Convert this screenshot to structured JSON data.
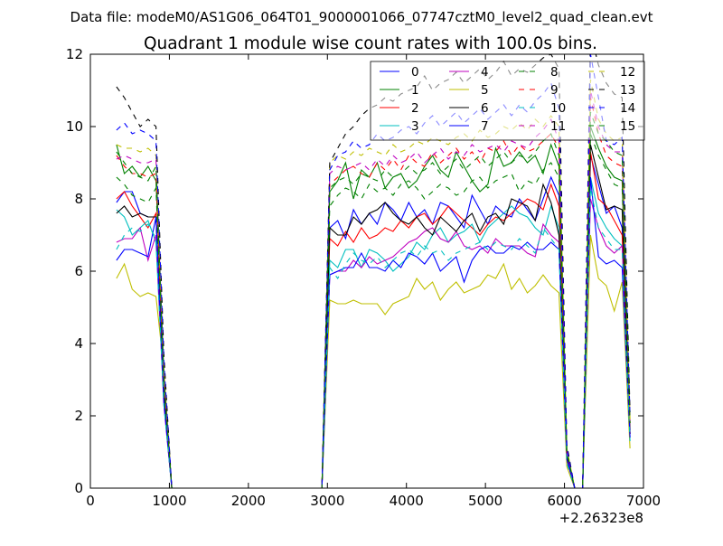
{
  "chart_data": {
    "type": "line",
    "suptitle": "Data file: modeM0/AS1G06_064T01_9000001066_07747cztM0_level2_quad_clean.evt",
    "title": "Quadrant 1 module wise count rates with 100.0s bins.",
    "xlabel": "",
    "ylabel": "",
    "xlim": [
      0,
      7000
    ],
    "ylim": [
      0,
      12
    ],
    "x_offset_label": "+2.26323e8",
    "xticks": [
      "0",
      "1000",
      "2000",
      "3000",
      "4000",
      "5000",
      "6000",
      "7000"
    ],
    "yticks": [
      "0",
      "2",
      "4",
      "6",
      "8",
      "10",
      "12"
    ],
    "legend_position": "top-right",
    "legend_columns": 4,
    "grid": false,
    "x": [
      330,
      430,
      530,
      630,
      730,
      830,
      930,
      1030,
      1130,
      1230,
      1330,
      1430,
      1530,
      1630,
      1730,
      1830,
      1930,
      2030,
      2130,
      2230,
      2330,
      2430,
      2530,
      2630,
      2730,
      2830,
      2930,
      3030,
      3130,
      3230,
      3330,
      3430,
      3530,
      3630,
      3730,
      3830,
      3930,
      4030,
      4130,
      4230,
      4330,
      4430,
      4530,
      4630,
      4730,
      4830,
      4930,
      5030,
      5130,
      5230,
      5330,
      5430,
      5530,
      5630,
      5730,
      5830,
      5930,
      6030,
      6130,
      6230,
      6330,
      6430,
      6530,
      6630,
      6730,
      6830
    ],
    "series": [
      {
        "name": "0",
        "color": "#0000ff",
        "dashed": false,
        "values": [
          7.9,
          8.2,
          8.2,
          7.6,
          7.5,
          7.5,
          2.8,
          0,
          0,
          0,
          0,
          0,
          0,
          0,
          0,
          0,
          0,
          0,
          0,
          0,
          0,
          0,
          0,
          0,
          0,
          0,
          0,
          7.2,
          7.4,
          6.9,
          7.7,
          7.3,
          7.6,
          7.3,
          7.9,
          7.7,
          7.4,
          7.9,
          7.5,
          7.7,
          7.3,
          7.9,
          7.8,
          7.5,
          7.2,
          8.1,
          7.7,
          7.3,
          7.8,
          7.6,
          7.5,
          8.0,
          7.7,
          7.4,
          8.0,
          8.6,
          8.1,
          0.9,
          0,
          0,
          9.2,
          8.4,
          7.6,
          7.8,
          7.2,
          1.6
        ]
      },
      {
        "name": "1",
        "color": "#008000",
        "dashed": false,
        "values": [
          9.5,
          8.7,
          8.9,
          8.6,
          8.9,
          8.5,
          3.2,
          0,
          0,
          0,
          0,
          0,
          0,
          0,
          0,
          0,
          0,
          0,
          0,
          0,
          0,
          0,
          0,
          0,
          0,
          0,
          0,
          8.2,
          8.5,
          9.0,
          8.0,
          8.8,
          8.6,
          9.0,
          8.3,
          8.6,
          8.7,
          8.3,
          8.5,
          8.9,
          9.2,
          8.8,
          8.6,
          9.3,
          8.9,
          8.5,
          8.2,
          8.4,
          9.4,
          8.9,
          9.0,
          9.3,
          9.0,
          9.2,
          8.7,
          9.5,
          8.9,
          1.0,
          0,
          0,
          10.0,
          9.4,
          8.9,
          8.6,
          8.5,
          1.8
        ]
      },
      {
        "name": "2",
        "color": "#ff0000",
        "dashed": false,
        "values": [
          8.0,
          8.2,
          7.8,
          7.5,
          7.2,
          7.6,
          2.7,
          0,
          0,
          0,
          0,
          0,
          0,
          0,
          0,
          0,
          0,
          0,
          0,
          0,
          0,
          0,
          0,
          0,
          0,
          0,
          0,
          6.9,
          6.7,
          7.1,
          6.8,
          7.2,
          6.9,
          7.0,
          7.2,
          7.1,
          7.4,
          7.2,
          7.5,
          7.6,
          7.3,
          7.5,
          7.8,
          7.6,
          7.4,
          7.2,
          7.0,
          7.3,
          7.5,
          7.4,
          7.6,
          7.8,
          8.0,
          7.9,
          7.7,
          8.4,
          7.8,
          0.9,
          0,
          0,
          9.3,
          8.0,
          7.8,
          7.4,
          7.0,
          1.5
        ]
      },
      {
        "name": "3",
        "color": "#00bfbf",
        "dashed": false,
        "values": [
          7.7,
          7.5,
          7.0,
          7.2,
          7.4,
          6.8,
          2.4,
          0,
          0,
          0,
          0,
          0,
          0,
          0,
          0,
          0,
          0,
          0,
          0,
          0,
          0,
          0,
          0,
          0,
          0,
          0,
          0,
          6.3,
          6.1,
          6.6,
          6.6,
          6.1,
          6.6,
          6.5,
          6.3,
          6.0,
          6.2,
          6.4,
          6.8,
          6.6,
          7.0,
          7.2,
          6.8,
          7.0,
          7.1,
          7.3,
          6.8,
          7.2,
          7.4,
          7.6,
          7.8,
          7.6,
          7.5,
          7.2,
          7.0,
          7.8,
          7.2,
          0.8,
          0,
          0,
          8.6,
          7.6,
          7.2,
          6.9,
          6.7,
          1.4
        ]
      },
      {
        "name": "4",
        "color": "#bf00bf",
        "dashed": false,
        "values": [
          6.8,
          6.9,
          6.9,
          7.2,
          6.3,
          7.0,
          2.3,
          0,
          0,
          0,
          0,
          0,
          0,
          0,
          0,
          0,
          0,
          0,
          0,
          0,
          0,
          0,
          0,
          0,
          0,
          0,
          0,
          5.9,
          6.0,
          6.0,
          6.3,
          6.1,
          6.4,
          6.2,
          6.3,
          6.4,
          6.6,
          6.8,
          6.9,
          7.1,
          7.2,
          6.9,
          6.8,
          7.1,
          6.7,
          6.6,
          6.7,
          6.5,
          6.9,
          6.7,
          6.7,
          6.7,
          6.5,
          6.4,
          7.3,
          7.0,
          6.8,
          0.8,
          0,
          0,
          8.0,
          7.2,
          6.7,
          6.5,
          6.7,
          1.5
        ]
      },
      {
        "name": "5",
        "color": "#bfbf00",
        "dashed": false,
        "values": [
          5.8,
          6.2,
          5.5,
          5.3,
          5.4,
          5.3,
          3.3,
          0,
          0,
          0,
          0,
          0,
          0,
          0,
          0,
          0,
          0,
          0,
          0,
          0,
          0,
          0,
          0,
          0,
          0,
          0,
          0,
          5.2,
          5.1,
          5.1,
          5.2,
          5.1,
          5.1,
          5.1,
          4.8,
          5.1,
          5.2,
          5.3,
          5.8,
          5.5,
          5.7,
          5.2,
          5.5,
          5.7,
          5.4,
          5.5,
          5.6,
          5.9,
          5.8,
          6.2,
          5.5,
          5.8,
          5.4,
          5.6,
          5.9,
          5.6,
          5.4,
          0.6,
          0,
          0,
          7.0,
          5.8,
          5.6,
          4.9,
          5.7,
          1.1
        ]
      },
      {
        "name": "6",
        "color": "#000000",
        "dashed": false,
        "values": [
          7.6,
          7.8,
          7.5,
          7.6,
          7.5,
          7.5,
          2.6,
          0,
          0,
          0,
          0,
          0,
          0,
          0,
          0,
          0,
          0,
          0,
          0,
          0,
          0,
          0,
          0,
          0,
          0,
          0,
          0,
          7.2,
          7.0,
          7.0,
          7.5,
          7.3,
          7.6,
          7.7,
          7.9,
          7.6,
          7.4,
          7.3,
          7.5,
          7.2,
          7.0,
          7.5,
          7.3,
          7.1,
          7.4,
          7.6,
          7.1,
          7.5,
          7.6,
          7.3,
          8.0,
          7.9,
          7.8,
          7.4,
          8.4,
          7.9,
          7.0,
          0.9,
          0,
          0,
          9.5,
          8.6,
          7.7,
          7.8,
          7.7,
          1.5
        ]
      },
      {
        "name": "7",
        "color": "#0000ff",
        "dashed": false,
        "values": [
          6.3,
          6.6,
          6.6,
          6.5,
          6.4,
          7.5,
          2.4,
          0,
          0,
          0,
          0,
          0,
          0,
          0,
          0,
          0,
          0,
          0,
          0,
          0,
          0,
          0,
          0,
          0,
          0,
          0,
          0,
          5.9,
          6.0,
          6.1,
          6.1,
          6.5,
          6.1,
          6.1,
          6.0,
          6.3,
          6.1,
          6.5,
          6.4,
          6.2,
          6.5,
          6.0,
          6.2,
          6.4,
          5.7,
          6.3,
          6.6,
          6.7,
          6.5,
          6.5,
          6.7,
          6.6,
          6.8,
          6.6,
          6.6,
          6.8,
          6.6,
          0.8,
          0,
          0,
          8.6,
          6.4,
          6.2,
          6.3,
          6.1,
          1.4
        ]
      },
      {
        "name": "8",
        "color": "#008000",
        "dashed": true,
        "values": [
          8.6,
          8.4,
          8.1,
          8.0,
          7.9,
          8.3,
          2.9,
          0,
          0,
          0,
          0,
          0,
          0,
          0,
          0,
          0,
          0,
          0,
          0,
          0,
          0,
          0,
          0,
          0,
          0,
          0,
          0,
          7.8,
          8.1,
          8.3,
          8.2,
          8.0,
          8.4,
          8.2,
          8.3,
          8.1,
          8.4,
          8.5,
          8.3,
          8.0,
          8.2,
          8.4,
          8.3,
          8.1,
          8.2,
          8.5,
          8.6,
          8.3,
          8.5,
          8.6,
          8.7,
          8.2,
          8.5,
          8.4,
          8.8,
          9.0,
          8.6,
          1.0,
          0,
          0,
          9.8,
          9.2,
          8.8,
          8.4,
          8.3,
          1.7
        ]
      },
      {
        "name": "9",
        "color": "#ff0000",
        "dashed": true,
        "values": [
          9.2,
          8.9,
          8.7,
          8.7,
          8.6,
          8.7,
          3.1,
          0,
          0,
          0,
          0,
          0,
          0,
          0,
          0,
          0,
          0,
          0,
          0,
          0,
          0,
          0,
          0,
          0,
          0,
          0,
          0,
          8.4,
          8.6,
          8.8,
          8.9,
          8.7,
          8.6,
          9.0,
          8.8,
          9.1,
          8.8,
          9.2,
          9.0,
          8.9,
          9.3,
          9.0,
          9.2,
          9.4,
          9.1,
          9.3,
          9.0,
          9.4,
          9.3,
          9.6,
          9.2,
          9.5,
          9.3,
          9.4,
          9.6,
          9.8,
          9.4,
          1.0,
          0,
          0,
          10.8,
          9.8,
          9.2,
          9.0,
          8.9,
          1.8
        ]
      },
      {
        "name": "10",
        "color": "#00bfbf",
        "dashed": true,
        "values": [
          6.6,
          7.0,
          7.2,
          7.1,
          7.3,
          6.9,
          2.3,
          0,
          0,
          0,
          0,
          0,
          0,
          0,
          0,
          0,
          0,
          0,
          0,
          0,
          0,
          0,
          0,
          0,
          0,
          0,
          0,
          6.1,
          5.8,
          6.2,
          6.5,
          6.3,
          6.2,
          6.4,
          6.1,
          6.3,
          6.5,
          6.6,
          6.4,
          6.7,
          6.5,
          6.6,
          6.3,
          6.5,
          6.6,
          6.7,
          6.8,
          6.6,
          6.8,
          6.7,
          6.6,
          6.9,
          6.7,
          6.5,
          7.2,
          6.9,
          6.6,
          0.7,
          0,
          0,
          8.3,
          7.2,
          6.9,
          6.6,
          6.6,
          1.3
        ]
      },
      {
        "name": "11",
        "color": "#bf00bf",
        "dashed": true,
        "values": [
          9.1,
          9.2,
          9.1,
          9.0,
          9.0,
          9.1,
          3.1,
          0,
          0,
          0,
          0,
          0,
          0,
          0,
          0,
          0,
          0,
          0,
          0,
          0,
          0,
          0,
          0,
          0,
          0,
          0,
          0,
          8.7,
          8.9,
          8.8,
          8.9,
          9.0,
          8.8,
          9.1,
          8.9,
          9.2,
          9.0,
          9.1,
          9.3,
          9.0,
          9.2,
          9.4,
          9.1,
          9.3,
          9.2,
          9.5,
          9.3,
          9.4,
          9.5,
          9.3,
          9.6,
          9.5,
          9.4,
          9.7,
          9.9,
          10.2,
          9.6,
          1.0,
          0,
          0,
          11.0,
          10.0,
          9.5,
          9.3,
          9.3,
          1.8
        ]
      },
      {
        "name": "12",
        "color": "#bfbf00",
        "dashed": true,
        "values": [
          9.5,
          9.4,
          9.4,
          9.3,
          9.4,
          9.2,
          3.2,
          0,
          0,
          0,
          0,
          0,
          0,
          0,
          0,
          0,
          0,
          0,
          0,
          0,
          0,
          0,
          0,
          0,
          0,
          0,
          0,
          9.0,
          9.2,
          9.1,
          9.3,
          9.2,
          9.4,
          9.3,
          9.2,
          9.5,
          9.3,
          9.4,
          9.6,
          9.5,
          9.7,
          9.6,
          9.5,
          9.7,
          9.8,
          9.6,
          9.9,
          9.7,
          9.8,
          10.0,
          9.9,
          10.1,
          9.9,
          10.2,
          10.0,
          10.3,
          10.0,
          1.1,
          0,
          0,
          11.3,
          10.2,
          9.8,
          9.6,
          9.7,
          1.9
        ]
      },
      {
        "name": "13",
        "color": "#000000",
        "dashed": true,
        "values": [
          11.1,
          10.8,
          10.4,
          10.0,
          10.2,
          10.0,
          3.7,
          0,
          0,
          0,
          0,
          0,
          0,
          0,
          0,
          0,
          0,
          0,
          0,
          0,
          0,
          0,
          0,
          0,
          0,
          0,
          0,
          9.0,
          9.4,
          9.8,
          10.0,
          10.3,
          10.5,
          10.6,
          10.8,
          10.7,
          10.9,
          11.0,
          11.1,
          11.4,
          11.0,
          11.2,
          11.3,
          11.5,
          11.2,
          11.4,
          11.6,
          11.3,
          11.5,
          11.8,
          11.4,
          11.6,
          11.5,
          11.7,
          11.9,
          12.0,
          11.6,
          1.2,
          0,
          0,
          12.6,
          11.7,
          11.2,
          10.9,
          10.8,
          2.1
        ]
      },
      {
        "name": "14",
        "color": "#0000ff",
        "dashed": true,
        "values": [
          9.9,
          10.1,
          9.8,
          9.9,
          9.8,
          9.6,
          3.5,
          0,
          0,
          0,
          0,
          0,
          0,
          0,
          0,
          0,
          0,
          0,
          0,
          0,
          0,
          0,
          0,
          0,
          0,
          0,
          0,
          8.8,
          9.2,
          9.3,
          9.6,
          9.4,
          9.5,
          9.8,
          9.6,
          9.7,
          9.9,
          10.0,
          9.8,
          10.1,
          10.3,
          10.0,
          10.2,
          10.4,
          10.1,
          10.3,
          10.5,
          10.2,
          10.4,
          10.6,
          10.3,
          10.6,
          10.4,
          10.7,
          10.9,
          11.2,
          10.5,
          1.1,
          0,
          0,
          12.0,
          10.8,
          9.6,
          9.5,
          9.7,
          2.0
        ]
      },
      {
        "name": "15",
        "color": "#008000",
        "dashed": true,
        "values": [
          9.3,
          9.0,
          8.7,
          8.6,
          8.5,
          8.9,
          3.0,
          0,
          0,
          0,
          0,
          0,
          0,
          0,
          0,
          0,
          0,
          0,
          0,
          0,
          0,
          0,
          0,
          0,
          0,
          0,
          0,
          8.3,
          8.5,
          8.6,
          8.4,
          8.7,
          8.6,
          8.5,
          8.8,
          8.6,
          8.7,
          8.9,
          8.7,
          8.8,
          9.0,
          8.7,
          8.9,
          9.1,
          8.8,
          9.0,
          9.2,
          8.9,
          9.1,
          9.3,
          9.0,
          9.2,
          9.1,
          9.3,
          9.6,
          9.8,
          9.2,
          1.0,
          0,
          0,
          10.4,
          9.8,
          9.6,
          9.3,
          9.2,
          1.8
        ]
      }
    ]
  }
}
